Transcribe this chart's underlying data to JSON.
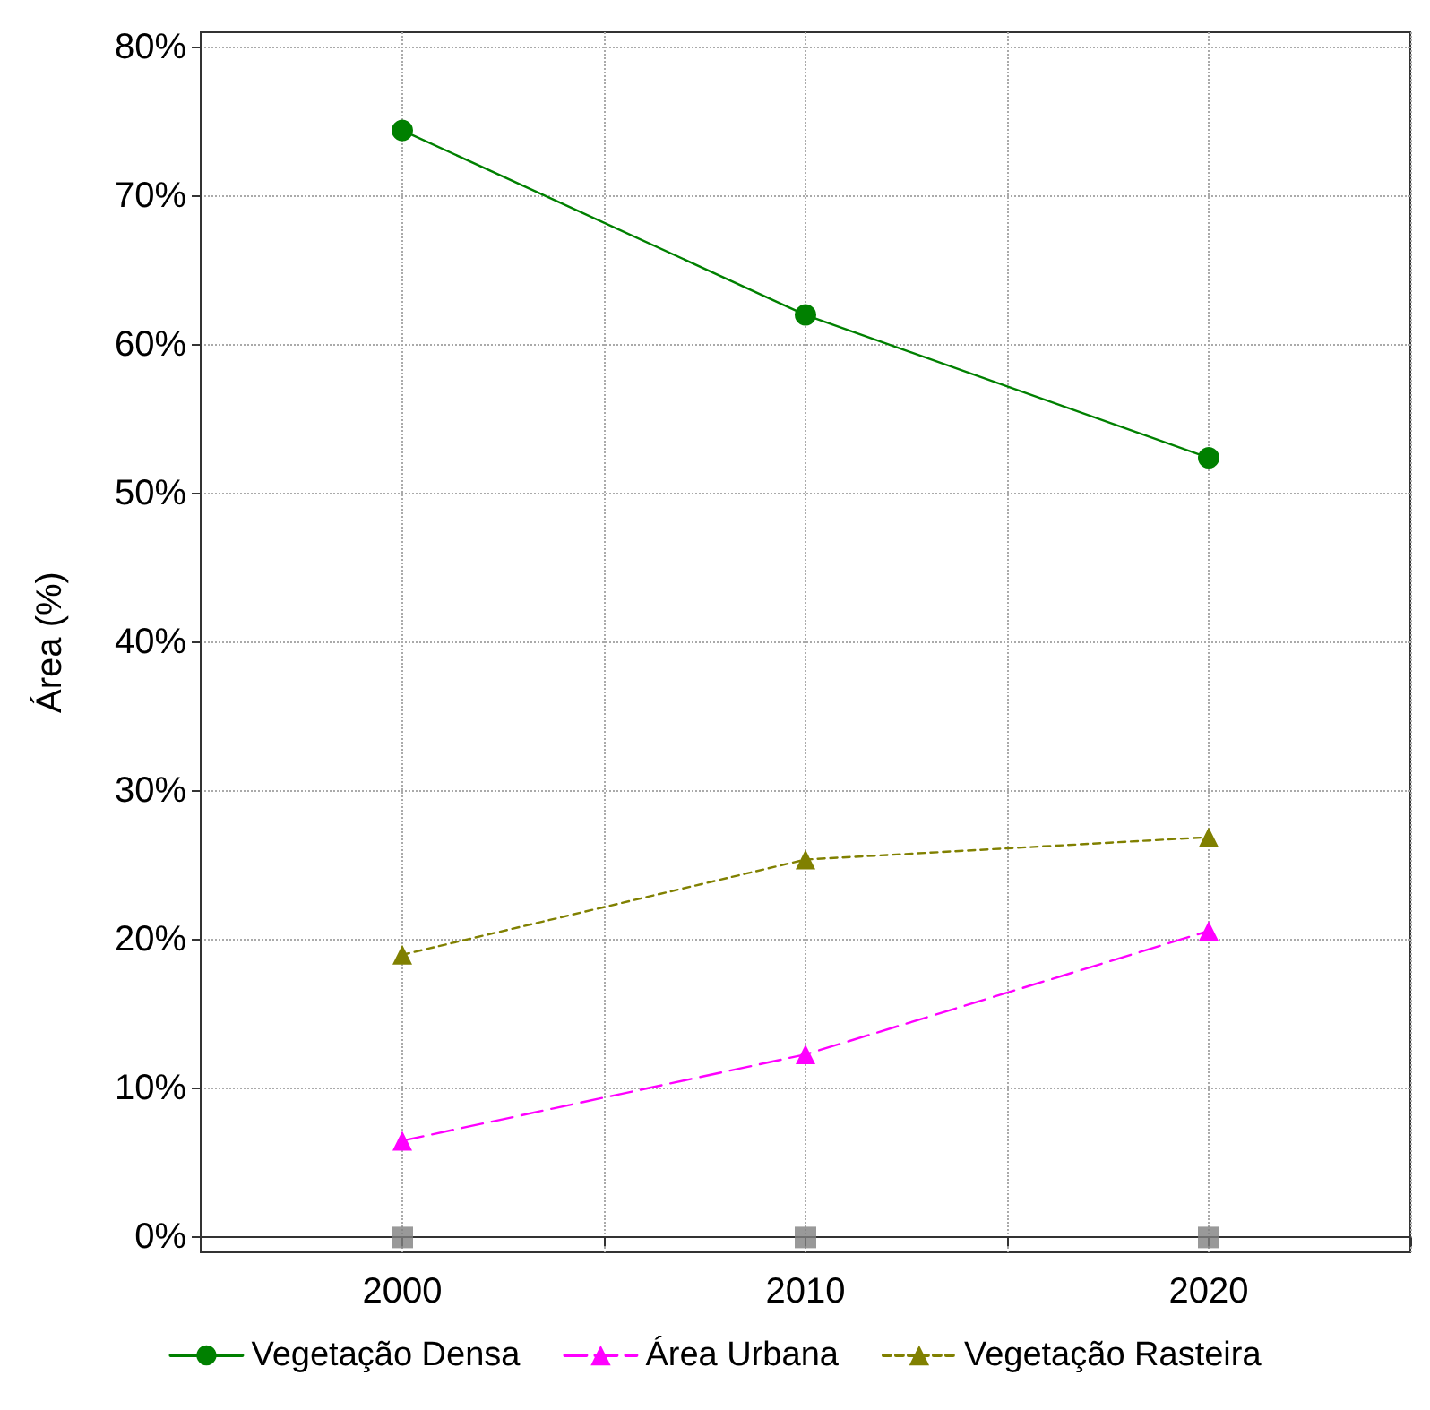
{
  "chart_data": {
    "type": "line",
    "ylabel": "Área (%)",
    "xlim": [
      1995,
      2025
    ],
    "xticks": [
      {
        "value": 1995,
        "label": null
      },
      2000,
      {
        "value": 2005,
        "label": null
      },
      2010,
      {
        "value": 2015,
        "label": null
      },
      2020,
      {
        "value": 2025,
        "label": null
      }
    ],
    "ylim": [
      -1,
      81
    ],
    "yticks": [
      {
        "value": 0,
        "label": "0%"
      },
      {
        "value": 10,
        "label": "10%"
      },
      {
        "value": 20,
        "label": "20%"
      },
      {
        "value": 30,
        "label": "30%"
      },
      {
        "value": 40,
        "label": "40%"
      },
      {
        "value": 50,
        "label": "50%"
      },
      {
        "value": 60,
        "label": "60%"
      },
      {
        "value": 70,
        "label": "70%"
      },
      {
        "value": 80,
        "label": "80%"
      }
    ],
    "x": [
      2000,
      2010,
      2020
    ],
    "series": [
      {
        "name": "Vegetação Densa",
        "color": "#008000",
        "values": [
          74.4,
          62.0,
          52.4
        ],
        "marker": "circle",
        "line_style": "solid"
      },
      {
        "name": "Área Urbana",
        "color": "#ff00ff",
        "values": [
          6.5,
          12.3,
          20.6
        ],
        "marker": "triangle",
        "line_style": "dashed"
      },
      {
        "name": "Vegetação Rasteira",
        "color": "#808000",
        "values": [
          19.0,
          25.4,
          26.9
        ],
        "marker": "triangle",
        "line_style": "dotted"
      },
      {
        "type": "scatter",
        "color": "#808080",
        "values": [
          0,
          0,
          0
        ],
        "marker": "square"
      }
    ],
    "grid": true,
    "legend": "bottom"
  }
}
